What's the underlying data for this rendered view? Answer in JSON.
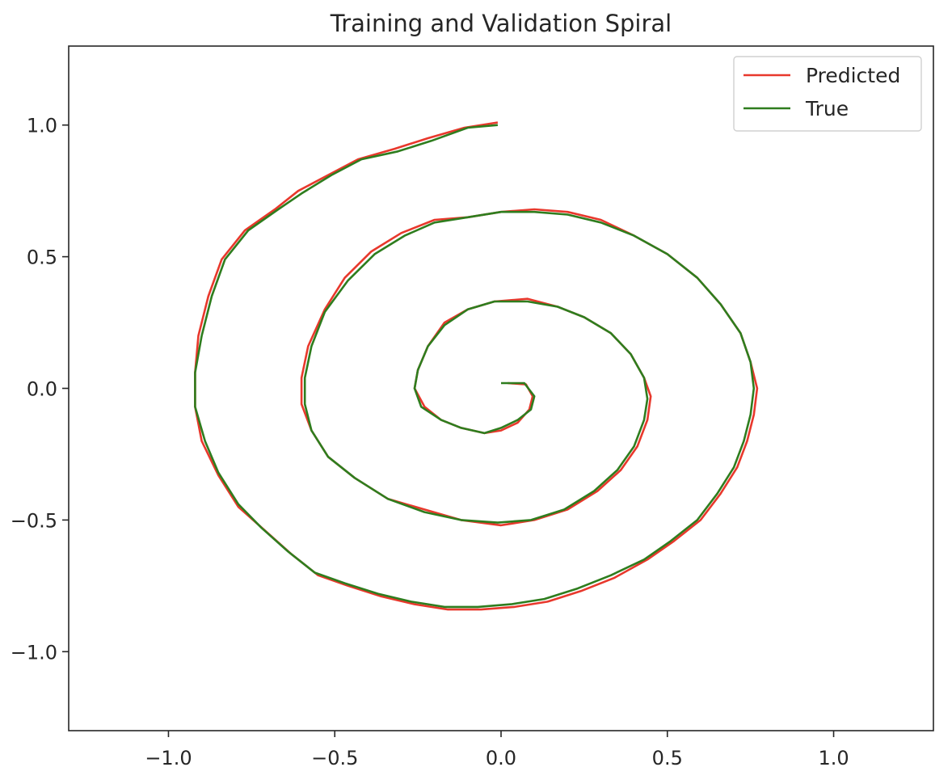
{
  "chart_data": {
    "type": "line",
    "title": "Training and Validation Spiral",
    "xlabel": "",
    "ylabel": "",
    "xlim": [
      -1.3,
      1.3
    ],
    "ylim": [
      -1.3,
      1.3
    ],
    "xticks": [
      -1.0,
      -0.5,
      0.0,
      0.5,
      1.0
    ],
    "xtick_labels": [
      "−1.0",
      "−0.5",
      "0.0",
      "0.5",
      "1.0"
    ],
    "yticks": [
      1.0,
      0.5,
      0.0,
      -0.5,
      -1.0
    ],
    "ytick_labels": [
      "1.0",
      "0.5",
      "0.0",
      "−0.5",
      "−1.0"
    ],
    "grid": false,
    "legend_position": "top-right",
    "series": [
      {
        "name": "Predicted",
        "color": "#e8382c",
        "points": [
          [
            0.02,
            0.02
          ],
          [
            0.075,
            0.015
          ],
          [
            0.095,
            -0.03
          ],
          [
            0.085,
            -0.08
          ],
          [
            0.05,
            -0.13
          ],
          [
            0.0,
            -0.16
          ],
          [
            -0.05,
            -0.17
          ],
          [
            -0.12,
            -0.15
          ],
          [
            -0.18,
            -0.12
          ],
          [
            -0.23,
            -0.07
          ],
          [
            -0.26,
            0.0
          ],
          [
            -0.25,
            0.07
          ],
          [
            -0.22,
            0.16
          ],
          [
            -0.17,
            0.25
          ],
          [
            -0.1,
            0.3
          ],
          [
            -0.02,
            0.33
          ],
          [
            0.08,
            0.34
          ],
          [
            0.17,
            0.31
          ],
          [
            0.25,
            0.27
          ],
          [
            0.33,
            0.21
          ],
          [
            0.39,
            0.13
          ],
          [
            0.43,
            0.04
          ],
          [
            0.45,
            -0.03
          ],
          [
            0.44,
            -0.12
          ],
          [
            0.41,
            -0.22
          ],
          [
            0.36,
            -0.31
          ],
          [
            0.29,
            -0.39
          ],
          [
            0.2,
            -0.46
          ],
          [
            0.1,
            -0.5
          ],
          [
            0.0,
            -0.52
          ],
          [
            -0.12,
            -0.5
          ],
          [
            -0.23,
            -0.46
          ],
          [
            -0.34,
            -0.42
          ],
          [
            -0.44,
            -0.34
          ],
          [
            -0.52,
            -0.26
          ],
          [
            -0.57,
            -0.16
          ],
          [
            -0.6,
            -0.06
          ],
          [
            -0.6,
            0.04
          ],
          [
            -0.58,
            0.16
          ],
          [
            -0.53,
            0.3
          ],
          [
            -0.47,
            0.42
          ],
          [
            -0.39,
            0.52
          ],
          [
            -0.3,
            0.59
          ],
          [
            -0.2,
            0.64
          ],
          [
            -0.1,
            0.65
          ],
          [
            0.0,
            0.67
          ],
          [
            0.1,
            0.68
          ],
          [
            0.2,
            0.67
          ],
          [
            0.3,
            0.64
          ],
          [
            0.4,
            0.58
          ],
          [
            0.5,
            0.51
          ],
          [
            0.59,
            0.42
          ],
          [
            0.66,
            0.32
          ],
          [
            0.72,
            0.21
          ],
          [
            0.75,
            0.1
          ],
          [
            0.77,
            0.0
          ],
          [
            0.76,
            -0.1
          ],
          [
            0.74,
            -0.2
          ],
          [
            0.71,
            -0.3
          ],
          [
            0.66,
            -0.4
          ],
          [
            0.6,
            -0.5
          ],
          [
            0.52,
            -0.58
          ],
          [
            0.44,
            -0.65
          ],
          [
            0.34,
            -0.72
          ],
          [
            0.24,
            -0.77
          ],
          [
            0.14,
            -0.81
          ],
          [
            0.04,
            -0.83
          ],
          [
            -0.06,
            -0.84
          ],
          [
            -0.16,
            -0.84
          ],
          [
            -0.26,
            -0.82
          ],
          [
            -0.36,
            -0.79
          ],
          [
            -0.46,
            -0.75
          ],
          [
            -0.55,
            -0.71
          ],
          [
            -0.63,
            -0.63
          ],
          [
            -0.71,
            -0.54
          ],
          [
            -0.79,
            -0.45
          ],
          [
            -0.85,
            -0.33
          ],
          [
            -0.9,
            -0.2
          ],
          [
            -0.92,
            -0.07
          ],
          [
            -0.92,
            0.06
          ],
          [
            -0.91,
            0.2
          ],
          [
            -0.88,
            0.35
          ],
          [
            -0.84,
            0.49
          ],
          [
            -0.77,
            0.6
          ],
          [
            -0.68,
            0.68
          ],
          [
            -0.61,
            0.75
          ],
          [
            -0.52,
            0.81
          ],
          [
            -0.43,
            0.87
          ],
          [
            -0.32,
            0.91
          ],
          [
            -0.22,
            0.95
          ],
          [
            -0.11,
            0.99
          ],
          [
            -0.01,
            1.01
          ]
        ]
      },
      {
        "name": "True",
        "color": "#2e7d1e",
        "points": [
          [
            0.0,
            0.02
          ],
          [
            0.07,
            0.02
          ],
          [
            0.1,
            -0.03
          ],
          [
            0.09,
            -0.08
          ],
          [
            0.05,
            -0.12
          ],
          [
            0.0,
            -0.15
          ],
          [
            -0.05,
            -0.17
          ],
          [
            -0.12,
            -0.15
          ],
          [
            -0.18,
            -0.12
          ],
          [
            -0.24,
            -0.07
          ],
          [
            -0.26,
            0.0
          ],
          [
            -0.25,
            0.07
          ],
          [
            -0.22,
            0.16
          ],
          [
            -0.17,
            0.24
          ],
          [
            -0.1,
            0.3
          ],
          [
            -0.02,
            0.33
          ],
          [
            0.08,
            0.33
          ],
          [
            0.17,
            0.31
          ],
          [
            0.25,
            0.27
          ],
          [
            0.33,
            0.21
          ],
          [
            0.39,
            0.13
          ],
          [
            0.43,
            0.04
          ],
          [
            0.44,
            -0.04
          ],
          [
            0.43,
            -0.12
          ],
          [
            0.4,
            -0.22
          ],
          [
            0.35,
            -0.31
          ],
          [
            0.28,
            -0.39
          ],
          [
            0.19,
            -0.46
          ],
          [
            0.09,
            -0.5
          ],
          [
            -0.01,
            -0.51
          ],
          [
            -0.12,
            -0.5
          ],
          [
            -0.23,
            -0.47
          ],
          [
            -0.34,
            -0.42
          ],
          [
            -0.44,
            -0.34
          ],
          [
            -0.52,
            -0.26
          ],
          [
            -0.57,
            -0.16
          ],
          [
            -0.59,
            -0.06
          ],
          [
            -0.59,
            0.04
          ],
          [
            -0.57,
            0.16
          ],
          [
            -0.53,
            0.29
          ],
          [
            -0.46,
            0.41
          ],
          [
            -0.38,
            0.51
          ],
          [
            -0.29,
            0.58
          ],
          [
            -0.2,
            0.63
          ],
          [
            -0.1,
            0.65
          ],
          [
            0.0,
            0.67
          ],
          [
            0.1,
            0.67
          ],
          [
            0.2,
            0.66
          ],
          [
            0.3,
            0.63
          ],
          [
            0.4,
            0.58
          ],
          [
            0.5,
            0.51
          ],
          [
            0.59,
            0.42
          ],
          [
            0.66,
            0.32
          ],
          [
            0.72,
            0.21
          ],
          [
            0.75,
            0.1
          ],
          [
            0.76,
            0.0
          ],
          [
            0.75,
            -0.1
          ],
          [
            0.73,
            -0.2
          ],
          [
            0.7,
            -0.3
          ],
          [
            0.65,
            -0.4
          ],
          [
            0.59,
            -0.5
          ],
          [
            0.51,
            -0.58
          ],
          [
            0.43,
            -0.65
          ],
          [
            0.33,
            -0.71
          ],
          [
            0.23,
            -0.76
          ],
          [
            0.13,
            -0.8
          ],
          [
            0.03,
            -0.82
          ],
          [
            -0.07,
            -0.83
          ],
          [
            -0.17,
            -0.83
          ],
          [
            -0.27,
            -0.81
          ],
          [
            -0.37,
            -0.78
          ],
          [
            -0.47,
            -0.74
          ],
          [
            -0.56,
            -0.7
          ],
          [
            -0.64,
            -0.62
          ],
          [
            -0.72,
            -0.53
          ],
          [
            -0.79,
            -0.44
          ],
          [
            -0.85,
            -0.32
          ],
          [
            -0.89,
            -0.2
          ],
          [
            -0.92,
            -0.07
          ],
          [
            -0.92,
            0.06
          ],
          [
            -0.9,
            0.2
          ],
          [
            -0.87,
            0.35
          ],
          [
            -0.83,
            0.49
          ],
          [
            -0.76,
            0.6
          ],
          [
            -0.67,
            0.68
          ],
          [
            -0.6,
            0.74
          ],
          [
            -0.51,
            0.81
          ],
          [
            -0.42,
            0.87
          ],
          [
            -0.31,
            0.9
          ],
          [
            -0.21,
            0.94
          ],
          [
            -0.1,
            0.99
          ],
          [
            -0.01,
            1.0
          ]
        ]
      }
    ]
  }
}
